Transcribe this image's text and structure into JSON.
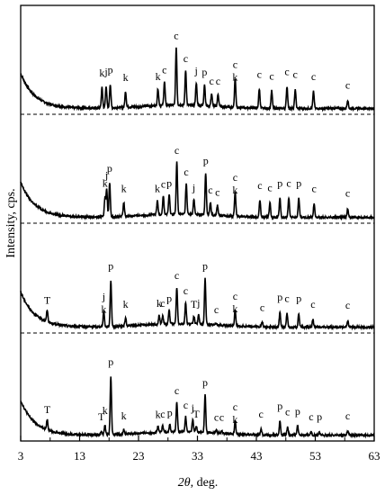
{
  "chart_data": {
    "type": "line",
    "xlabel_italic": "2θ",
    "xlabel_rest": ", deg.",
    "ylabel": "Intensity, cps.",
    "xlim": [
      3,
      63
    ],
    "xticks": [
      "3",
      "13",
      "23",
      "33",
      "43",
      "53",
      "63"
    ],
    "grid": false,
    "legend": "none",
    "series": [
      {
        "baseline_pct": 90,
        "labels": [
          {
            "text": "k",
            "x": 16.8,
            "h": 0.52
          },
          {
            "text": "j",
            "x": 17.5,
            "h": 0.55
          },
          {
            "text": "p",
            "x": 18.2,
            "h": 0.58
          },
          {
            "text": "k",
            "x": 20.8,
            "h": 0.44
          },
          {
            "text": "k",
            "x": 26.3,
            "h": 0.46
          },
          {
            "text": "c",
            "x": 27.4,
            "h": 0.58
          },
          {
            "text": "c",
            "x": 29.4,
            "h": 1.18
          },
          {
            "text": "c",
            "x": 31.0,
            "h": 0.78
          },
          {
            "text": "j",
            "x": 32.8,
            "h": 0.56
          },
          {
            "text": "p",
            "x": 34.2,
            "h": 0.54
          },
          {
            "text": "c",
            "x": 35.4,
            "h": 0.38
          },
          {
            "text": "c",
            "x": 36.5,
            "h": 0.38
          },
          {
            "text": "c",
            "x": 39.4,
            "h": 0.67
          },
          {
            "text": "k",
            "x": 39.4,
            "h": 0.54
          },
          {
            "text": "c",
            "x": 43.5,
            "h": 0.5
          },
          {
            "text": "c",
            "x": 45.6,
            "h": 0.47
          },
          {
            "text": "c",
            "x": 48.2,
            "h": 0.55
          },
          {
            "text": "c",
            "x": 49.6,
            "h": 0.5
          },
          {
            "text": "c",
            "x": 52.7,
            "h": 0.46
          },
          {
            "text": "c",
            "x": 58.5,
            "h": 0.31
          }
        ]
      },
      {
        "baseline_pct": 90,
        "labels": [
          {
            "text": "k",
            "x": 17.3,
            "h": 0.5
          },
          {
            "text": "j",
            "x": 17.6,
            "h": 0.64
          },
          {
            "text": "p",
            "x": 18.1,
            "h": 0.76
          },
          {
            "text": "k",
            "x": 20.5,
            "h": 0.4
          },
          {
            "text": "k",
            "x": 26.2,
            "h": 0.4
          },
          {
            "text": "c",
            "x": 27.2,
            "h": 0.48
          },
          {
            "text": "p",
            "x": 28.2,
            "h": 0.5
          },
          {
            "text": "c",
            "x": 29.5,
            "h": 1.08
          },
          {
            "text": "c",
            "x": 31.1,
            "h": 0.7
          },
          {
            "text": "j",
            "x": 32.4,
            "h": 0.42
          },
          {
            "text": "p",
            "x": 34.4,
            "h": 0.9
          },
          {
            "text": "c",
            "x": 35.2,
            "h": 0.38
          },
          {
            "text": "c",
            "x": 36.4,
            "h": 0.34
          },
          {
            "text": "c",
            "x": 39.4,
            "h": 0.6
          },
          {
            "text": "k",
            "x": 39.4,
            "h": 0.47
          },
          {
            "text": "c",
            "x": 43.6,
            "h": 0.46
          },
          {
            "text": "c",
            "x": 45.3,
            "h": 0.42
          },
          {
            "text": "p",
            "x": 47.0,
            "h": 0.5
          },
          {
            "text": "c",
            "x": 48.5,
            "h": 0.5
          },
          {
            "text": "p",
            "x": 50.2,
            "h": 0.5
          },
          {
            "text": "c",
            "x": 52.8,
            "h": 0.4
          },
          {
            "text": "c",
            "x": 58.5,
            "h": 0.32
          }
        ]
      },
      {
        "baseline_pct": 90,
        "labels": [
          {
            "text": "T",
            "x": 7.5,
            "h": 0.37
          },
          {
            "text": "j",
            "x": 17.1,
            "h": 0.43
          },
          {
            "text": "k",
            "x": 17.1,
            "h": 0.32
          },
          {
            "text": "p",
            "x": 18.3,
            "h": 0.97
          },
          {
            "text": "k",
            "x": 20.8,
            "h": 0.3
          },
          {
            "text": "k",
            "x": 26.5,
            "h": 0.31
          },
          {
            "text": "c",
            "x": 27.1,
            "h": 0.31
          },
          {
            "text": "p",
            "x": 28.2,
            "h": 0.4
          },
          {
            "text": "c",
            "x": 29.5,
            "h": 0.8
          },
          {
            "text": "c",
            "x": 31.0,
            "h": 0.53
          },
          {
            "text": "T",
            "x": 32.4,
            "h": 0.3
          },
          {
            "text": "j",
            "x": 33.2,
            "h": 0.32
          },
          {
            "text": "p",
            "x": 34.3,
            "h": 0.97
          },
          {
            "text": "c",
            "x": 36.2,
            "h": 0.2
          },
          {
            "text": "c",
            "x": 39.4,
            "h": 0.44
          },
          {
            "text": "k",
            "x": 39.4,
            "h": 0.3
          },
          {
            "text": "c",
            "x": 44.0,
            "h": 0.24
          },
          {
            "text": "p",
            "x": 47.0,
            "h": 0.42
          },
          {
            "text": "c",
            "x": 48.2,
            "h": 0.4
          },
          {
            "text": "p",
            "x": 50.2,
            "h": 0.4
          },
          {
            "text": "c",
            "x": 52.6,
            "h": 0.3
          },
          {
            "text": "c",
            "x": 58.5,
            "h": 0.28
          }
        ]
      },
      {
        "baseline_pct": 90,
        "labels": [
          {
            "text": "p",
            "x": 18.3,
            "h": 1.2
          },
          {
            "text": "T",
            "x": 7.5,
            "h": 0.35
          },
          {
            "text": "T",
            "x": 16.7,
            "h": 0.22
          },
          {
            "text": "k",
            "x": 17.3,
            "h": 0.33
          },
          {
            "text": "k",
            "x": 20.5,
            "h": 0.24
          },
          {
            "text": "k",
            "x": 26.3,
            "h": 0.26
          },
          {
            "text": "c",
            "x": 27.1,
            "h": 0.27
          },
          {
            "text": "p",
            "x": 28.3,
            "h": 0.29
          },
          {
            "text": "c",
            "x": 29.5,
            "h": 0.69
          },
          {
            "text": "c",
            "x": 31.0,
            "h": 0.43
          },
          {
            "text": "j",
            "x": 32.2,
            "h": 0.38
          },
          {
            "text": "T",
            "x": 32.8,
            "h": 0.27
          },
          {
            "text": "p",
            "x": 34.3,
            "h": 0.83
          },
          {
            "text": "c",
            "x": 36.2,
            "h": 0.21
          },
          {
            "text": "c",
            "x": 37.1,
            "h": 0.21
          },
          {
            "text": "c",
            "x": 39.4,
            "h": 0.4
          },
          {
            "text": "k",
            "x": 39.4,
            "h": 0.27
          },
          {
            "text": "c",
            "x": 43.8,
            "h": 0.27
          },
          {
            "text": "p",
            "x": 47.0,
            "h": 0.41
          },
          {
            "text": "c",
            "x": 48.3,
            "h": 0.31
          },
          {
            "text": "p",
            "x": 50.0,
            "h": 0.32
          },
          {
            "text": "c",
            "x": 52.3,
            "h": 0.22
          },
          {
            "text": "p",
            "x": 53.7,
            "h": 0.22
          },
          {
            "text": "c",
            "x": 58.5,
            "h": 0.24
          }
        ]
      }
    ]
  }
}
